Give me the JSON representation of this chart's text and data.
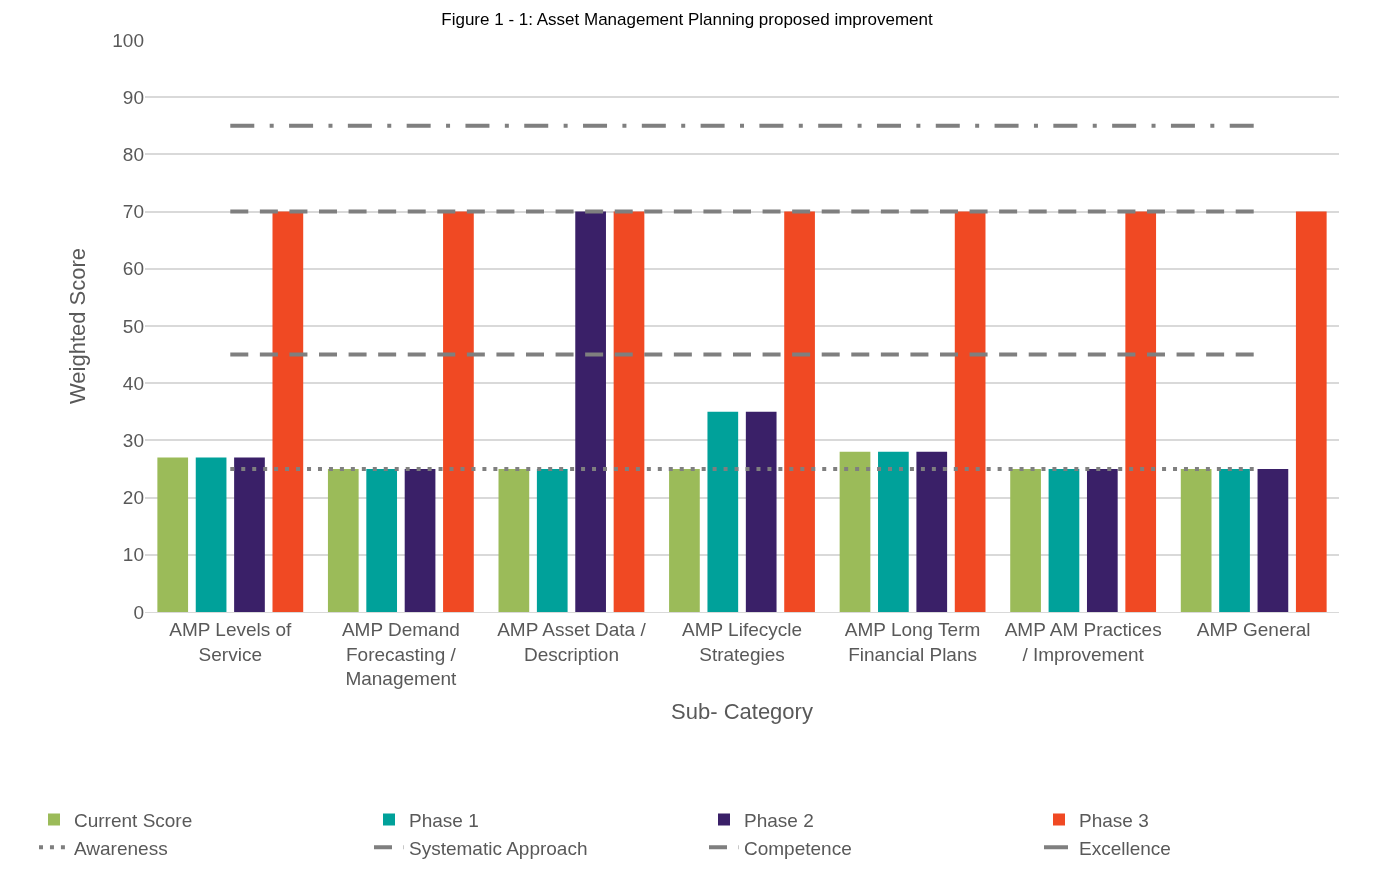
{
  "chart_data": {
    "type": "bar",
    "title": "Figure 1 - 1: Asset Management Planning proposed improvement",
    "xlabel": "Sub- Category",
    "ylabel": "Weighted Score",
    "categories": [
      "AMP Levels of Service",
      "AMP Demand Forecasting / Management",
      "AMP Asset Data / Description",
      "AMP Lifecycle Strategies",
      "AMP Long Term Financial Plans",
      "AMP AM Practices / Improvement",
      "AMP General"
    ],
    "series": [
      {
        "name": "Current Score",
        "color": "#9bbb59",
        "values": [
          27,
          25,
          25,
          25,
          28,
          25,
          25
        ]
      },
      {
        "name": "Phase 1",
        "color": "#00a19a",
        "values": [
          27,
          25,
          25,
          35,
          28,
          25,
          25
        ]
      },
      {
        "name": "Phase 2",
        "color": "#3a2068",
        "values": [
          27,
          25,
          70,
          35,
          28,
          25,
          25
        ]
      },
      {
        "name": "Phase 3",
        "color": "#f04923",
        "values": [
          70,
          70,
          70,
          70,
          70,
          70,
          70
        ]
      },
      {
        "name": "Awareness",
        "type": "line",
        "color": "#7f7f7f",
        "line_style": "dotted",
        "values": [
          25,
          25,
          25,
          25,
          25,
          25,
          25
        ]
      },
      {
        "name": "Systematic Approach",
        "type": "line",
        "color": "#7f7f7f",
        "line_style": "dashed",
        "values": [
          45,
          45,
          45,
          45,
          45,
          45,
          45
        ]
      },
      {
        "name": "Competence",
        "type": "line",
        "color": "#7f7f7f",
        "line_style": "dashed",
        "values": [
          70,
          70,
          70,
          70,
          70,
          70,
          70
        ]
      },
      {
        "name": "Excellence",
        "type": "line",
        "color": "#7f7f7f",
        "line_style": "dashdot",
        "values": [
          85,
          85,
          85,
          85,
          85,
          85,
          85
        ]
      }
    ],
    "ylim": [
      0,
      100
    ],
    "yticks": [
      0,
      10,
      20,
      30,
      40,
      50,
      60,
      70,
      80,
      90,
      100
    ],
    "grid": "y",
    "legend": "bottom",
    "marker": "none"
  }
}
